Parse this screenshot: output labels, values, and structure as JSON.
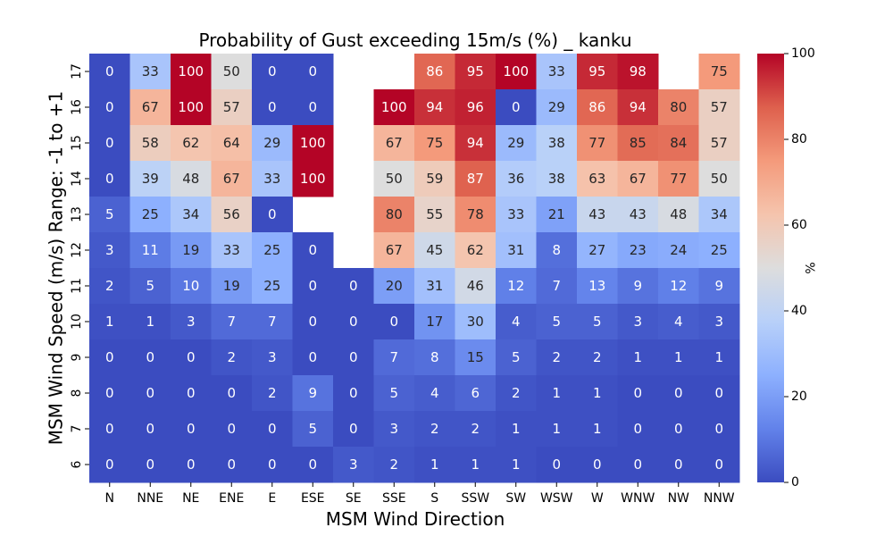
{
  "chart_data": {
    "type": "heatmap",
    "title": "Probability of Gust exceeding 15m/s (%) _ kanku",
    "xlabel": "MSM Wind Direction",
    "ylabel": "MSM Wind Speed (m/s) Range: -1 to +1",
    "colorbar_label": "%",
    "colormap": "coolwarm",
    "vmin": 0,
    "vmax": 100,
    "colorbar_ticks": [
      "0",
      "20",
      "40",
      "60",
      "80",
      "100"
    ],
    "x_categories": [
      "N",
      "NNE",
      "NE",
      "ENE",
      "E",
      "ESE",
      "SE",
      "SSE",
      "S",
      "SSW",
      "SW",
      "WSW",
      "W",
      "WNW",
      "NW",
      "NNW"
    ],
    "y_categories": [
      "17",
      "16",
      "15",
      "14",
      "13",
      "12",
      "11",
      "10",
      "9",
      "8",
      "7",
      "6"
    ],
    "values": [
      [
        0,
        33,
        100,
        50,
        0,
        0,
        null,
        null,
        86,
        95,
        100,
        33,
        95,
        98,
        null,
        75
      ],
      [
        0,
        67,
        100,
        57,
        0,
        0,
        null,
        100,
        94,
        96,
        0,
        29,
        86,
        94,
        80,
        57
      ],
      [
        0,
        58,
        62,
        64,
        29,
        100,
        null,
        67,
        75,
        94,
        29,
        38,
        77,
        85,
        84,
        57
      ],
      [
        0,
        39,
        48,
        67,
        33,
        100,
        null,
        50,
        59,
        87,
        36,
        38,
        63,
        67,
        77,
        50
      ],
      [
        5,
        25,
        34,
        56,
        0,
        null,
        null,
        80,
        55,
        78,
        33,
        21,
        43,
        43,
        48,
        34
      ],
      [
        3,
        11,
        19,
        33,
        25,
        0,
        null,
        67,
        45,
        62,
        31,
        8,
        27,
        23,
        24,
        25
      ],
      [
        2,
        5,
        10,
        19,
        25,
        0,
        0,
        20,
        31,
        46,
        12,
        7,
        13,
        9,
        12,
        9
      ],
      [
        1,
        1,
        3,
        7,
        7,
        0,
        0,
        0,
        17,
        30,
        4,
        5,
        5,
        3,
        4,
        3
      ],
      [
        0,
        0,
        0,
        2,
        3,
        0,
        0,
        7,
        8,
        15,
        5,
        2,
        2,
        1,
        1,
        1
      ],
      [
        0,
        0,
        0,
        0,
        2,
        9,
        0,
        5,
        4,
        6,
        2,
        1,
        1,
        0,
        0,
        0
      ],
      [
        0,
        0,
        0,
        0,
        0,
        5,
        0,
        3,
        2,
        2,
        1,
        1,
        1,
        0,
        0,
        0
      ],
      [
        0,
        0,
        0,
        0,
        0,
        0,
        3,
        2,
        1,
        1,
        1,
        0,
        0,
        0,
        0,
        0
      ]
    ]
  }
}
